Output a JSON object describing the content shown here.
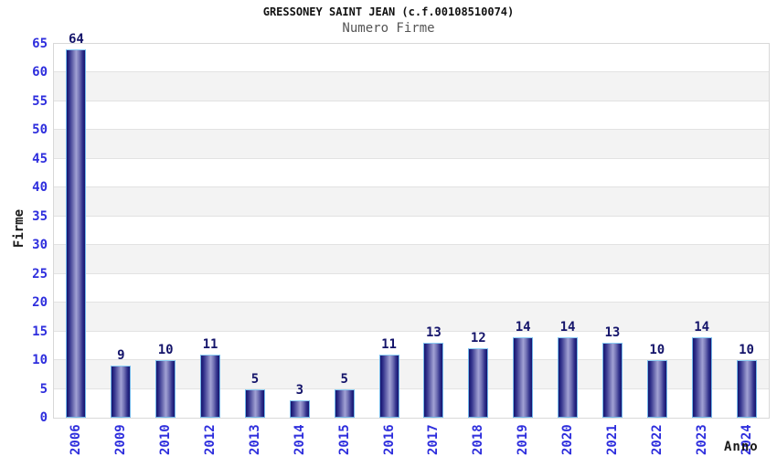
{
  "chart_data": {
    "type": "bar",
    "title": "GRESSONEY SAINT JEAN (c.f.00108510074)",
    "subtitle": "Numero Firme",
    "xlabel": "Anno",
    "ylabel": "Firme",
    "categories": [
      "2006",
      "2009",
      "2010",
      "2012",
      "2013",
      "2014",
      "2015",
      "2016",
      "2017",
      "2018",
      "2019",
      "2020",
      "2021",
      "2022",
      "2023",
      "2024"
    ],
    "values": [
      64,
      9,
      10,
      11,
      5,
      3,
      5,
      11,
      13,
      12,
      14,
      14,
      13,
      10,
      14,
      10
    ],
    "ylim": [
      0,
      65
    ],
    "ytick_step": 5,
    "grid": "horizontal-bands-alternating",
    "legend": "none"
  },
  "colors": {
    "tick_label_blue": "#2e2edd",
    "value_label_navy": "#14146a",
    "bar_dark": "#14146e",
    "bar_shade": "#32328c",
    "bar_mid": "#6e6eb2",
    "bar_light": "#a2a2d4",
    "bar_border_lightblue": "#74b8ea",
    "band_gray": "#f3f3f3",
    "grid_line": "#e2e2e2",
    "plot_border_gray": "#d8d8d8",
    "title_black": "#111111",
    "subtitle_gray": "#555555",
    "axis_label_dark": "#1a1a1a"
  }
}
